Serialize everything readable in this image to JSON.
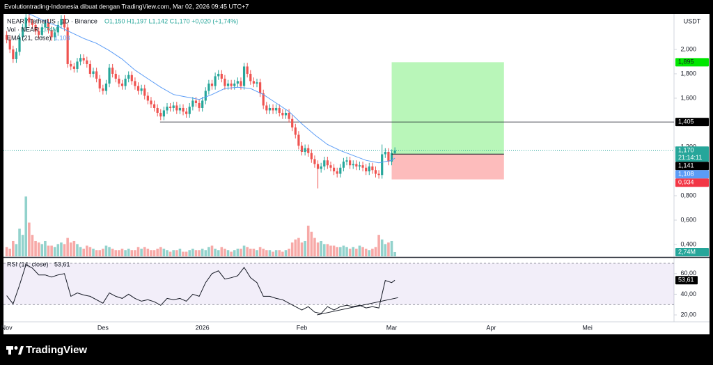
{
  "header": {
    "title": "Evolutiontrading-Indonesia dibuat dengan TradingView.com, Mar 02, 2026 09:45 UTC+7",
    "symbol": "NEAR / TetherUS · 1D · Binance",
    "ohlc": "O1,150 H1,197 L1,142 C1,170 +0,020 (+1,74%)",
    "currency": "USDT",
    "brand": "TradingView"
  },
  "chart_data": {
    "type": "candlestick",
    "x": [
      0,
      1,
      2,
      3,
      4,
      5,
      6,
      7,
      8,
      9,
      10,
      11,
      12,
      13,
      14,
      15,
      16,
      17,
      18,
      19,
      20,
      21,
      22,
      23,
      24,
      25,
      26,
      27,
      28,
      29,
      30,
      31,
      32,
      33,
      34,
      35,
      36,
      37,
      38,
      39,
      40,
      41,
      42,
      43,
      44,
      45,
      46,
      47,
      48,
      49,
      50,
      51,
      52,
      53,
      54,
      55,
      56,
      57,
      58,
      59,
      60,
      61,
      62,
      63,
      64,
      65,
      66,
      67,
      68,
      69,
      70,
      71,
      72,
      73,
      74,
      75,
      76,
      77,
      78,
      79,
      80,
      81,
      82,
      83,
      84,
      85,
      86,
      87,
      88,
      89,
      90,
      91,
      92,
      93,
      94,
      95,
      96,
      97,
      98,
      99,
      100,
      101,
      102,
      103,
      104,
      105,
      106,
      107,
      108,
      109,
      110,
      111,
      112,
      113,
      114,
      115,
      116,
      117,
      118,
      119,
      120,
      121
    ],
    "open": [
      2.12,
      2.08,
      2.0,
      1.92,
      1.98,
      2.1,
      2.18,
      2.26,
      2.22,
      2.2,
      2.15,
      2.12,
      2.18,
      2.22,
      2.16,
      2.1,
      2.14,
      2.2,
      2.25,
      2.18,
      1.88,
      1.86,
      1.84,
      1.9,
      1.93,
      1.91,
      1.88,
      1.8,
      1.82,
      1.76,
      1.68,
      1.66,
      1.72,
      1.85,
      1.8,
      1.76,
      1.72,
      1.7,
      1.76,
      1.79,
      1.74,
      1.7,
      1.66,
      1.68,
      1.62,
      1.58,
      1.55,
      1.52,
      1.48,
      1.45,
      1.5,
      1.53,
      1.52,
      1.54,
      1.5,
      1.52,
      1.49,
      1.47,
      1.53,
      1.58,
      1.56,
      1.52,
      1.58,
      1.66,
      1.72,
      1.7,
      1.78,
      1.8,
      1.76,
      1.7,
      1.72,
      1.7,
      1.72,
      1.74,
      1.7,
      1.86,
      1.8,
      1.74,
      1.72,
      1.73,
      1.64,
      1.54,
      1.5,
      1.52,
      1.5,
      1.52,
      1.48,
      1.46,
      1.48,
      1.43,
      1.36,
      1.3,
      1.21,
      1.16,
      1.19,
      1.15,
      1.1,
      1.06,
      1.02,
      1.04,
      1.09,
      1.05,
      1.03,
      1.0,
      0.98,
      1.03,
      1.08,
      1.09,
      1.05,
      1.06,
      1.04,
      1.05,
      1.03,
      1.0,
      1.04,
      1.01,
      0.98,
      0.97,
      1.14,
      1.16,
      1.08,
      1.15
    ],
    "high": [
      2.15,
      2.11,
      2.03,
      2.01,
      2.13,
      2.21,
      2.3,
      2.29,
      2.25,
      2.23,
      2.18,
      2.21,
      2.25,
      2.25,
      2.19,
      2.17,
      2.23,
      2.28,
      2.28,
      2.21,
      1.91,
      1.89,
      1.93,
      1.96,
      1.96,
      1.94,
      1.91,
      1.85,
      1.85,
      1.79,
      1.71,
      1.75,
      1.88,
      1.88,
      1.83,
      1.79,
      1.75,
      1.79,
      1.82,
      1.82,
      1.77,
      1.73,
      1.71,
      1.71,
      1.65,
      1.61,
      1.58,
      1.55,
      1.51,
      1.53,
      1.56,
      1.56,
      1.57,
      1.57,
      1.55,
      1.55,
      1.52,
      1.56,
      1.61,
      1.61,
      1.59,
      1.61,
      1.69,
      1.75,
      1.75,
      1.81,
      1.83,
      1.83,
      1.79,
      1.75,
      1.75,
      1.75,
      1.77,
      1.77,
      1.89,
      1.89,
      1.83,
      1.77,
      1.76,
      1.76,
      1.67,
      1.57,
      1.55,
      1.55,
      1.55,
      1.55,
      1.51,
      1.51,
      1.51,
      1.46,
      1.39,
      1.33,
      1.24,
      1.22,
      1.22,
      1.18,
      1.13,
      1.09,
      1.07,
      1.12,
      1.12,
      1.08,
      1.06,
      1.03,
      1.06,
      1.11,
      1.12,
      1.12,
      1.09,
      1.09,
      1.08,
      1.08,
      1.06,
      1.07,
      1.07,
      1.04,
      1.01,
      1.22,
      1.19,
      1.19,
      1.18,
      1.197
    ],
    "low": [
      2.05,
      1.97,
      1.89,
      1.89,
      1.95,
      2.07,
      2.15,
      2.19,
      2.17,
      2.12,
      2.09,
      2.09,
      2.15,
      2.13,
      2.07,
      2.07,
      2.11,
      2.17,
      2.15,
      1.85,
      1.83,
      1.81,
      1.81,
      1.87,
      1.88,
      1.85,
      1.77,
      1.77,
      1.73,
      1.65,
      1.63,
      1.63,
      1.69,
      1.77,
      1.73,
      1.69,
      1.67,
      1.67,
      1.73,
      1.71,
      1.67,
      1.63,
      1.63,
      1.59,
      1.55,
      1.52,
      1.49,
      1.45,
      1.42,
      1.42,
      1.47,
      1.49,
      1.49,
      1.47,
      1.47,
      1.46,
      1.44,
      1.44,
      1.5,
      1.53,
      1.49,
      1.49,
      1.55,
      1.63,
      1.67,
      1.67,
      1.75,
      1.73,
      1.67,
      1.67,
      1.67,
      1.67,
      1.69,
      1.67,
      1.67,
      1.77,
      1.71,
      1.69,
      1.69,
      1.61,
      1.51,
      1.47,
      1.47,
      1.47,
      1.47,
      1.45,
      1.43,
      1.43,
      1.4,
      1.33,
      1.27,
      1.18,
      1.13,
      1.13,
      1.12,
      1.07,
      1.03,
      0.86,
      0.99,
      1.01,
      1.02,
      1.0,
      0.97,
      0.95,
      0.95,
      1.0,
      1.05,
      1.02,
      1.02,
      1.01,
      1.01,
      1.0,
      0.97,
      0.97,
      0.98,
      0.95,
      0.94,
      0.94,
      1.11,
      1.05,
      1.05,
      1.142
    ],
    "close": [
      2.08,
      2.0,
      1.92,
      1.98,
      2.1,
      2.18,
      2.26,
      2.22,
      2.2,
      2.15,
      2.12,
      2.18,
      2.22,
      2.16,
      2.1,
      2.14,
      2.2,
      2.25,
      2.18,
      1.88,
      1.86,
      1.84,
      1.9,
      1.93,
      1.91,
      1.88,
      1.8,
      1.82,
      1.76,
      1.68,
      1.66,
      1.72,
      1.85,
      1.8,
      1.76,
      1.72,
      1.7,
      1.76,
      1.79,
      1.74,
      1.7,
      1.66,
      1.68,
      1.62,
      1.58,
      1.55,
      1.52,
      1.48,
      1.45,
      1.5,
      1.53,
      1.52,
      1.54,
      1.5,
      1.52,
      1.49,
      1.47,
      1.53,
      1.58,
      1.56,
      1.52,
      1.58,
      1.66,
      1.72,
      1.7,
      1.78,
      1.8,
      1.76,
      1.7,
      1.72,
      1.7,
      1.72,
      1.74,
      1.7,
      1.86,
      1.8,
      1.74,
      1.72,
      1.73,
      1.64,
      1.54,
      1.5,
      1.52,
      1.5,
      1.52,
      1.48,
      1.46,
      1.48,
      1.43,
      1.36,
      1.3,
      1.21,
      1.16,
      1.19,
      1.15,
      1.1,
      1.06,
      1.02,
      1.04,
      1.09,
      1.05,
      1.03,
      1.0,
      0.98,
      1.03,
      1.08,
      1.09,
      1.05,
      1.06,
      1.04,
      1.05,
      1.03,
      1.0,
      1.04,
      1.01,
      0.98,
      0.97,
      1.14,
      1.16,
      1.08,
      1.15,
      1.17
    ],
    "up_color": "#26a69a",
    "down_color": "#ef5350",
    "xlim": [
      -1,
      208
    ],
    "xticks": [
      {
        "value": 0,
        "label": "Nov"
      },
      {
        "value": 30,
        "label": "Des"
      },
      {
        "value": 61,
        "label": "2026"
      },
      {
        "value": 92,
        "label": "Feb"
      },
      {
        "value": 120,
        "label": "Mar"
      },
      {
        "value": 151,
        "label": "Apr"
      },
      {
        "value": 181,
        "label": "Mei"
      }
    ],
    "ylim": [
      0.303,
      2.291
    ],
    "yticks": [
      {
        "value": 0.4,
        "label": "0,400"
      },
      {
        "value": 0.6,
        "label": "0,600"
      },
      {
        "value": 0.8,
        "label": "0,800"
      },
      {
        "value": 1.2,
        "label": "1,200"
      },
      {
        "value": 1.6,
        "label": "1,600"
      },
      {
        "value": 1.8,
        "label": "1,800"
      },
      {
        "value": 2.0,
        "label": "2,000"
      }
    ],
    "last_price": {
      "value": 1.17,
      "label": "1,170",
      "countdown": "21:14:11"
    },
    "volume": {
      "name": "Vol · NEAR",
      "value_label": "2,74M",
      "ylim": [
        0,
        158
      ],
      "label_color": "#26a69a",
      "values": [
        6,
        5,
        10,
        8,
        18,
        14,
        39,
        22,
        14,
        10,
        9,
        8,
        10,
        7,
        7,
        6,
        8,
        9,
        8,
        12,
        9,
        10,
        8,
        6,
        5,
        7,
        6,
        5,
        4,
        4,
        5,
        7,
        6,
        5,
        4,
        4,
        5,
        4,
        5,
        4,
        4,
        6,
        5,
        6,
        5,
        4,
        4,
        5,
        6,
        5,
        4,
        3,
        4,
        4,
        5,
        3,
        3,
        4,
        5,
        4,
        4,
        5,
        4,
        6,
        7,
        5,
        4,
        6,
        5,
        4,
        3,
        4,
        5,
        5,
        7,
        6,
        5,
        5,
        4,
        6,
        5,
        4,
        4,
        3,
        4,
        4,
        3,
        4,
        5,
        9,
        11,
        12,
        9,
        10,
        20,
        16,
        12,
        9,
        10,
        8,
        8,
        7,
        7,
        6,
        6,
        7,
        6,
        5,
        6,
        5,
        7,
        6,
        5,
        4,
        5,
        6,
        14,
        11,
        8,
        9,
        10,
        2.74
      ]
    },
    "ema": {
      "name": "EMA (21, close)",
      "color": "#5b9cf6",
      "value_label": "1,108",
      "x": [
        0,
        4,
        8,
        12,
        16,
        20,
        24,
        28,
        32,
        36,
        40,
        44,
        48,
        52,
        56,
        60,
        64,
        68,
        72,
        76,
        80,
        84,
        88,
        92,
        96,
        100,
        104,
        108,
        112,
        116,
        120,
        121
      ],
      "values": [
        2.36,
        2.32,
        2.28,
        2.23,
        2.19,
        2.14,
        2.09,
        2.05,
        1.99,
        1.92,
        1.83,
        1.76,
        1.69,
        1.63,
        1.61,
        1.59,
        1.63,
        1.68,
        1.69,
        1.68,
        1.63,
        1.56,
        1.49,
        1.39,
        1.3,
        1.22,
        1.17,
        1.13,
        1.09,
        1.07,
        1.09,
        1.108
      ]
    },
    "horizontal_line": {
      "value": 1.405,
      "label": "1,405",
      "x_start": 47.8
    },
    "position": {
      "x": [
        120,
        155
      ],
      "entry": {
        "value": 1.141,
        "label": "1,141"
      },
      "target": {
        "value": 1.895,
        "label": "1,895"
      },
      "stop": {
        "value": 0.934,
        "label": "0,934"
      },
      "profit_color": "#b9f6b9",
      "loss_color": "#fdbcbc"
    },
    "rsi": {
      "name": "RSI (14, close)",
      "value_label": "53,61",
      "color": "#131722",
      "ylim": [
        13.3,
        74.7
      ],
      "band": [
        30,
        70
      ],
      "yticks": [
        {
          "value": 20,
          "label": "20,00"
        },
        {
          "value": 40,
          "label": "40,00"
        },
        {
          "value": 60,
          "label": "60,00"
        }
      ],
      "x": [
        0,
        2,
        4,
        6,
        8,
        10,
        12,
        14,
        16,
        18,
        20,
        22,
        24,
        26,
        28,
        30,
        32,
        34,
        36,
        38,
        40,
        42,
        44,
        46,
        48,
        50,
        52,
        54,
        56,
        58,
        60,
        62,
        64,
        66,
        68,
        70,
        72,
        74,
        76,
        78,
        80,
        82,
        84,
        86,
        88,
        90,
        92,
        94,
        96,
        98,
        100,
        102,
        104,
        106,
        108,
        110,
        112,
        114,
        116,
        118,
        120,
        121
      ],
      "values": [
        38.7,
        30.7,
        48.7,
        68.7,
        65.3,
        58.7,
        58.7,
        56.7,
        58.7,
        60.0,
        38.0,
        41.3,
        39.3,
        38.0,
        34.7,
        31.3,
        41.3,
        38.0,
        36.0,
        40.0,
        36.0,
        33.3,
        34.7,
        32.7,
        29.3,
        36.0,
        34.7,
        36.0,
        33.3,
        40.0,
        38.0,
        51.3,
        60.0,
        62.7,
        54.7,
        56.0,
        58.0,
        66.0,
        56.0,
        51.3,
        38.0,
        38.0,
        36.0,
        34.7,
        31.3,
        28.0,
        24.7,
        28.0,
        22.7,
        21.3,
        28.0,
        24.7,
        28.0,
        29.3,
        28.0,
        29.3,
        26.7,
        28.0,
        26.7,
        53.3,
        51.3,
        53.61
      ],
      "trendline": {
        "x": [
          96.7,
          122
        ],
        "values": [
          20,
          36.7
        ]
      }
    }
  }
}
